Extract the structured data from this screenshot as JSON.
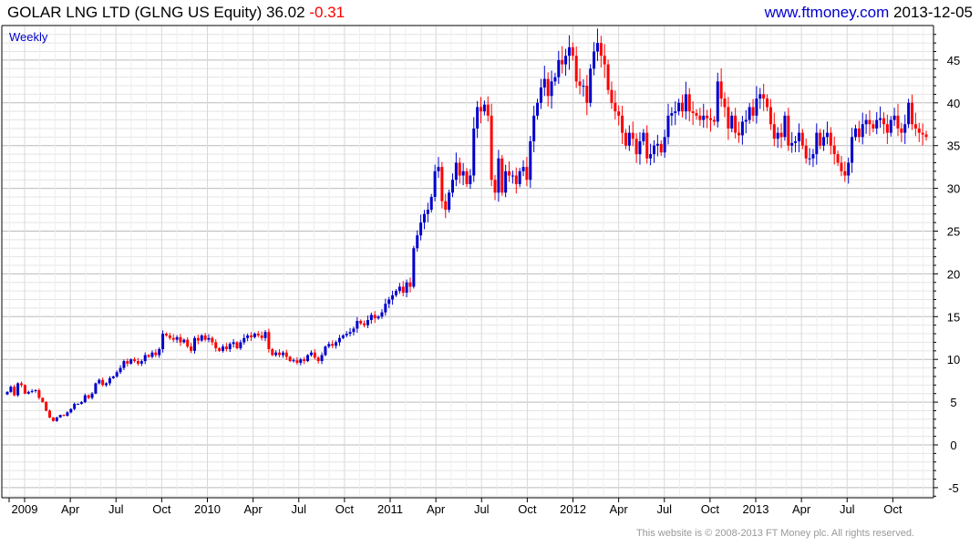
{
  "header": {
    "title": "GOLAR LNG LTD (GLNG US Equity)",
    "last_price": "36.02",
    "change": "-0.31",
    "site": "www.ftmoney.com",
    "date": "2013-12-05"
  },
  "footer": "This website is © 2008-2013 FT Money plc. All rights reserved.",
  "colors": {
    "up": "#0000cc",
    "down": "#ff0000",
    "grid_major": "#bbbbbb",
    "grid_minor": "#e4e4e4"
  },
  "chart_data": {
    "type": "candlestick",
    "interval_label": "Weekly",
    "ylim": [
      -6,
      48
    ],
    "y_ticks": [
      -5,
      0,
      5,
      10,
      15,
      20,
      25,
      30,
      35,
      40,
      45
    ],
    "x_ticks": [
      {
        "label": "2009",
        "t": 0
      },
      {
        "label": "Apr",
        "t": 0.25
      },
      {
        "label": "Jul",
        "t": 0.5
      },
      {
        "label": "Oct",
        "t": 0.75
      },
      {
        "label": "2010",
        "t": 1
      },
      {
        "label": "Apr",
        "t": 1.25
      },
      {
        "label": "Jul",
        "t": 1.5
      },
      {
        "label": "Oct",
        "t": 1.75
      },
      {
        "label": "2011",
        "t": 2
      },
      {
        "label": "Apr",
        "t": 2.25
      },
      {
        "label": "Jul",
        "t": 2.5
      },
      {
        "label": "Oct",
        "t": 2.75
      },
      {
        "label": "2012",
        "t": 3
      },
      {
        "label": "Apr",
        "t": 3.25
      },
      {
        "label": "Jul",
        "t": 3.5
      },
      {
        "label": "Oct",
        "t": 3.75
      },
      {
        "label": "2013",
        "t": 4
      },
      {
        "label": "Apr",
        "t": 4.25
      },
      {
        "label": "Jul",
        "t": 4.5
      },
      {
        "label": "Oct",
        "t": 4.75
      }
    ],
    "period": "2008-12 to 2013-12-05",
    "close": [
      6.2,
      6.8,
      5.8,
      7.2,
      7.0,
      6.0,
      6.2,
      6.3,
      6.4,
      5.5,
      5.0,
      4.0,
      3.2,
      2.8,
      3.2,
      3.5,
      3.4,
      3.8,
      4.2,
      4.8,
      4.8,
      5.0,
      5.8,
      5.5,
      6.0,
      7.2,
      7.6,
      7.0,
      7.2,
      7.8,
      8.0,
      8.5,
      9.0,
      9.8,
      9.5,
      10.0,
      9.8,
      9.5,
      9.8,
      10.5,
      10.3,
      10.8,
      10.5,
      11.2,
      13.0,
      12.8,
      12.5,
      12.3,
      12.6,
      12.0,
      12.3,
      11.5,
      11.0,
      12.5,
      12.2,
      12.8,
      12.3,
      12.5,
      12.0,
      11.3,
      11.0,
      11.5,
      11.2,
      11.8,
      12.0,
      11.3,
      12.0,
      12.5,
      12.8,
      12.6,
      13.0,
      12.8,
      12.5,
      13.2,
      11.2,
      10.5,
      10.8,
      10.5,
      10.8,
      10.3,
      9.8,
      9.9,
      9.6,
      10.0,
      9.8,
      10.5,
      10.8,
      10.2,
      9.8,
      10.5,
      11.5,
      11.8,
      11.6,
      12.0,
      12.5,
      12.8,
      13.0,
      13.2,
      13.6,
      14.5,
      14.2,
      14.0,
      14.6,
      15.2,
      14.8,
      15.0,
      15.5,
      16.5,
      17.0,
      17.5,
      18.0,
      18.5,
      17.8,
      19.0,
      18.5,
      23.0,
      24.5,
      26.0,
      27.0,
      27.5,
      29.0,
      32.0,
      32.5,
      28.5,
      27.5,
      29.5,
      31.0,
      33.0,
      31.5,
      32.0,
      30.5,
      31.5,
      37.0,
      39.5,
      39.0,
      39.8,
      38.5,
      31.0,
      29.5,
      33.5,
      29.5,
      32.0,
      31.5,
      31.5,
      30.5,
      32.0,
      32.5,
      31.0,
      35.5,
      38.5,
      40.0,
      41.8,
      42.8,
      40.8,
      42.5,
      43.0,
      45.0,
      44.5,
      45.5,
      46.5,
      45.5,
      42.5,
      42.0,
      42.0,
      40.0,
      44.0,
      46.0,
      47.0,
      45.5,
      44.5,
      41.5,
      40.0,
      39.0,
      38.5,
      36.5,
      35.0,
      36.5,
      35.8,
      34.0,
      35.5,
      36.5,
      33.5,
      34.0,
      35.0,
      35.2,
      34.2,
      36.0,
      38.5,
      38.8,
      39.0,
      40.0,
      39.0,
      41.0,
      39.0,
      38.8,
      38.5,
      38.0,
      38.5,
      38.2,
      38.0,
      37.8,
      42.5,
      40.5,
      39.5,
      37.0,
      38.5,
      36.5,
      36.2,
      37.8,
      38.0,
      39.5,
      38.5,
      40.5,
      41.0,
      40.5,
      39.5,
      37.5,
      35.8,
      36.5,
      36.0,
      38.5,
      35.0,
      35.3,
      35.5,
      36.5,
      35.0,
      33.5,
      33.5,
      34.0,
      36.5,
      35.0,
      36.0,
      36.5,
      35.0,
      34.0,
      33.0,
      32.0,
      31.5,
      33.0,
      36.0,
      37.0,
      36.0,
      37.5,
      38.0,
      37.5,
      37.0,
      38.0,
      38.2,
      37.5,
      36.5,
      38.0,
      38.5,
      37.0,
      36.5,
      37.5,
      40.0,
      37.5,
      37.0,
      36.5,
      36.3,
      36.02
    ]
  }
}
